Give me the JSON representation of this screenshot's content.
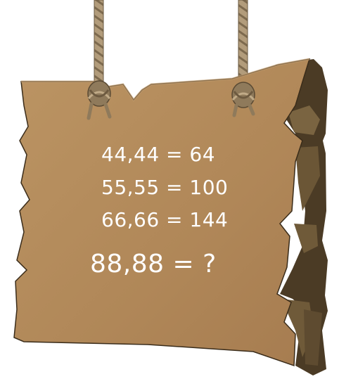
{
  "puzzle": {
    "equations": [
      {
        "text": "44,44 = 64"
      },
      {
        "text": "55,55 = 100"
      },
      {
        "text": "66,66 = 144"
      }
    ],
    "question": "88,88 = ?"
  },
  "colors": {
    "board_face": "#b38a5c",
    "board_shadow": "#4a3a24",
    "board_edge": "#6e5a3a",
    "rope": "#a89272",
    "text": "#ffffff"
  }
}
